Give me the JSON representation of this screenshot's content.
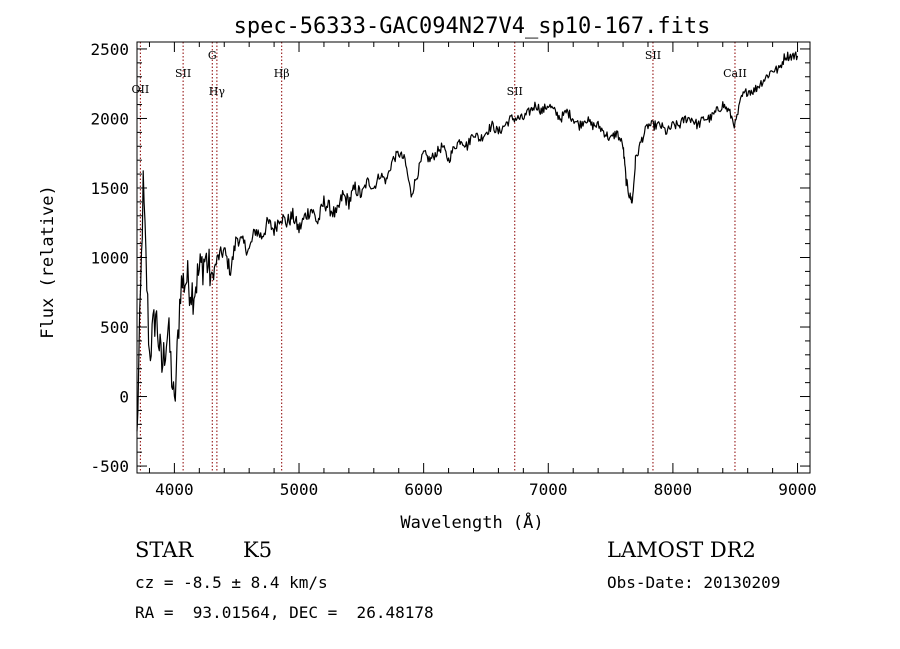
{
  "chart_data": {
    "type": "line",
    "title": "spec-56333-GAC094N27V4_sp10-167.fits",
    "xlabel": "Wavelength (Å)",
    "ylabel": "Flux (relative)",
    "xlim": [
      3700,
      9100
    ],
    "ylim": [
      -550,
      2550
    ],
    "x_ticks": [
      4000,
      5000,
      6000,
      7000,
      8000,
      9000
    ],
    "y_ticks": [
      -500,
      0,
      500,
      1000,
      1500,
      2000,
      2500
    ],
    "grid": false,
    "line_color": "#000000",
    "marker_color": "#8b0000",
    "spectral_lines": [
      {
        "label": "OII",
        "wavelength": 3727
      },
      {
        "label": "SII",
        "wavelength": 4070
      },
      {
        "label": "G",
        "wavelength": 4304
      },
      {
        "label": "Hγ",
        "wavelength": 4341
      },
      {
        "label": "Hβ",
        "wavelength": 4861
      },
      {
        "label": "SII",
        "wavelength": 6731
      },
      {
        "label": "SII",
        "wavelength": 7840
      },
      {
        "label": "CaII",
        "wavelength": 8498
      }
    ],
    "series": [
      {
        "x": [
          3700,
          3750,
          3800,
          3850,
          3900,
          3950,
          4000,
          4050,
          4100,
          4150,
          4200,
          4250,
          4300,
          4350,
          4400,
          4450,
          4500,
          4550,
          4600,
          4650,
          4700,
          4750,
          4800,
          4850,
          4900,
          4950,
          5000,
          5050,
          5100,
          5150,
          5200,
          5250,
          5300,
          5350,
          5400,
          5450,
          5500,
          5550,
          5600,
          5650,
          5700,
          5750,
          5800,
          5850,
          5900,
          5950,
          6000,
          6050,
          6100,
          6150,
          6200,
          6250,
          6300,
          6350,
          6400,
          6450,
          6500,
          6550,
          6600,
          6650,
          6700,
          6750,
          6800,
          6850,
          6900,
          6950,
          7000,
          7050,
          7100,
          7150,
          7200,
          7250,
          7300,
          7350,
          7400,
          7450,
          7500,
          7550,
          7600,
          7625,
          7650,
          7675,
          7700,
          7750,
          7800,
          7850,
          7900,
          7950,
          8000,
          8050,
          8100,
          8150,
          8200,
          8250,
          8300,
          8350,
          8400,
          8450,
          8500,
          8550,
          8600,
          8650,
          8700,
          8750,
          8800,
          8850,
          8900,
          8950,
          9000
        ],
        "y": [
          -300,
          1500,
          300,
          600,
          200,
          500,
          -100,
          800,
          850,
          750,
          900,
          1000,
          850,
          1000,
          1050,
          900,
          1150,
          1100,
          1050,
          1200,
          1150,
          1250,
          1200,
          1300,
          1250,
          1300,
          1200,
          1300,
          1350,
          1250,
          1400,
          1350,
          1300,
          1450,
          1400,
          1500,
          1450,
          1550,
          1500,
          1600,
          1550,
          1700,
          1750,
          1700,
          1450,
          1600,
          1750,
          1700,
          1750,
          1800,
          1700,
          1800,
          1850,
          1800,
          1900,
          1850,
          1900,
          1950,
          1900,
          1950,
          2000,
          2000,
          2000,
          2050,
          2100,
          2050,
          2100,
          2050,
          2000,
          2050,
          2000,
          1950,
          2000,
          1950,
          1950,
          1900,
          1850,
          1900,
          1800,
          1550,
          1450,
          1400,
          1700,
          1850,
          1950,
          1950,
          1950,
          1900,
          1950,
          1950,
          2000,
          2000,
          1950,
          2000,
          2000,
          2050,
          2100,
          2050,
          1950,
          2150,
          2200,
          2200,
          2250,
          2300,
          2350,
          2350,
          2450,
          2450,
          2450
        ]
      }
    ]
  },
  "info": {
    "object_class": "STAR",
    "subclass": "K5",
    "survey": "LAMOST DR2",
    "redshift_text": "cz = -8.5 ± 8.4 km/s",
    "obs_date": "Obs-Date: 20130209",
    "coords": "RA =  93.01564, DEC =  26.48178"
  }
}
